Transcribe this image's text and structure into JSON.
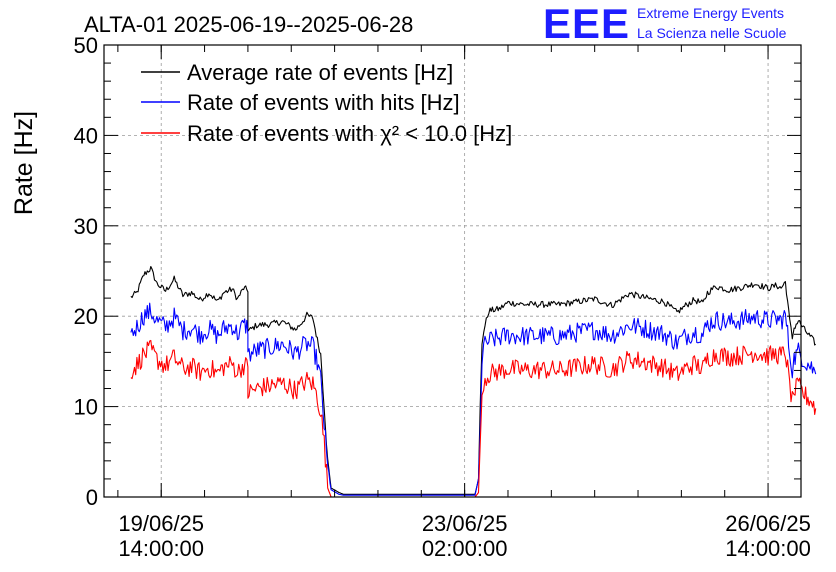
{
  "title": "ALTA-01 2025-06-19--2025-06-28",
  "logo": {
    "mark": "EEE",
    "line1": "Extreme Energy Events",
    "line2": "La Scienza nelle Scuole"
  },
  "chart_data": {
    "type": "line",
    "title": "ALTA-01 2025-06-19--2025-06-28",
    "xlabel": "",
    "ylabel": "Rate [Hz]",
    "ylim": [
      0,
      50
    ],
    "xlim": [
      -0.66,
      7.38
    ],
    "x_unit": "days since 19/06/25 14:00:00",
    "grid": true,
    "legend_placement": "top-left",
    "y_ticks": [
      0,
      10,
      20,
      30,
      40,
      50
    ],
    "x_ticks": [
      {
        "value": 0,
        "line1": "19/06/25",
        "line2": "14:00:00"
      },
      {
        "value": 3.5,
        "line1": "23/06/25",
        "line2": "02:00:00"
      },
      {
        "value": 7,
        "line1": "26/06/25",
        "line2": "14:00:00"
      }
    ],
    "series": [
      {
        "name": "Average rate of events [Hz]",
        "color": "#000000",
        "points": [
          [
            -0.35,
            22.1
          ],
          [
            -0.28,
            22.6
          ],
          [
            -0.2,
            24.6
          ],
          [
            -0.12,
            25.3
          ],
          [
            -0.05,
            23.6
          ],
          [
            0.05,
            22.8
          ],
          [
            0.15,
            24.1
          ],
          [
            0.25,
            22.3
          ],
          [
            0.35,
            22.6
          ],
          [
            0.45,
            21.8
          ],
          [
            0.55,
            22.6
          ],
          [
            0.65,
            21.6
          ],
          [
            0.72,
            22.6
          ],
          [
            0.82,
            23.0
          ],
          [
            0.88,
            21.9
          ],
          [
            0.95,
            23.1
          ],
          [
            1.0,
            22.9
          ],
          [
            1.0,
            18.3
          ],
          [
            1.1,
            19.0
          ],
          [
            1.25,
            19.1
          ],
          [
            1.4,
            19.4
          ],
          [
            1.55,
            18.5
          ],
          [
            1.62,
            19.3
          ],
          [
            1.68,
            20.1
          ],
          [
            1.75,
            19.8
          ],
          [
            1.8,
            17.4
          ],
          [
            1.84,
            15.8
          ],
          [
            1.88,
            10.0
          ],
          [
            1.92,
            4.0
          ],
          [
            1.96,
            1.0
          ],
          [
            2.05,
            0.5
          ],
          [
            2.1,
            0.3
          ],
          [
            3.5,
            0.3
          ],
          [
            3.62,
            0.3
          ],
          [
            3.66,
            2.0
          ],
          [
            3.68,
            10.0
          ],
          [
            3.7,
            17.0
          ],
          [
            3.72,
            18.4
          ],
          [
            3.78,
            20.6
          ],
          [
            3.9,
            20.8
          ],
          [
            4.0,
            21.5
          ],
          [
            4.2,
            21.3
          ],
          [
            4.4,
            21.3
          ],
          [
            4.6,
            21.3
          ],
          [
            4.8,
            21.6
          ],
          [
            5.0,
            21.9
          ],
          [
            5.2,
            21.2
          ],
          [
            5.4,
            22.5
          ],
          [
            5.6,
            22.0
          ],
          [
            5.8,
            21.6
          ],
          [
            5.95,
            20.4
          ],
          [
            6.05,
            21.2
          ],
          [
            6.15,
            21.8
          ],
          [
            6.25,
            21.4
          ],
          [
            6.3,
            22.6
          ],
          [
            6.4,
            23.3
          ],
          [
            6.55,
            22.9
          ],
          [
            6.7,
            23.2
          ],
          [
            6.85,
            23.6
          ],
          [
            7.0,
            23.1
          ],
          [
            7.1,
            23.4
          ],
          [
            7.15,
            23.1
          ],
          [
            7.2,
            23.8
          ],
          [
            7.25,
            19.5
          ],
          [
            7.28,
            17.6
          ],
          [
            7.3,
            18.7
          ],
          [
            7.35,
            19.5
          ],
          [
            7.42,
            18.5
          ],
          [
            7.5,
            17.6
          ],
          [
            7.55,
            16.9
          ]
        ]
      },
      {
        "name": "Rate of events with hits [Hz]",
        "color": "#0000ff",
        "points": [
          [
            -0.35,
            18.0
          ],
          [
            -0.28,
            18.8
          ],
          [
            -0.2,
            20.1
          ],
          [
            -0.12,
            20.5
          ],
          [
            -0.05,
            19.5
          ],
          [
            0.05,
            18.8
          ],
          [
            0.15,
            19.9
          ],
          [
            0.25,
            18.4
          ],
          [
            0.35,
            18.7
          ],
          [
            0.45,
            18.0
          ],
          [
            0.55,
            18.6
          ],
          [
            0.65,
            17.8
          ],
          [
            0.72,
            18.6
          ],
          [
            0.82,
            19.0
          ],
          [
            0.88,
            18.0
          ],
          [
            0.95,
            19.0
          ],
          [
            1.0,
            18.8
          ],
          [
            1.0,
            15.7
          ],
          [
            1.1,
            16.2
          ],
          [
            1.25,
            16.5
          ],
          [
            1.4,
            16.9
          ],
          [
            1.55,
            15.9
          ],
          [
            1.62,
            16.6
          ],
          [
            1.68,
            16.9
          ],
          [
            1.75,
            16.6
          ],
          [
            1.8,
            14.9
          ],
          [
            1.84,
            13.0
          ],
          [
            1.88,
            8.0
          ],
          [
            1.92,
            3.0
          ],
          [
            1.96,
            0.8
          ],
          [
            2.05,
            0.3
          ],
          [
            2.1,
            0.2
          ],
          [
            3.5,
            0.2
          ],
          [
            3.62,
            0.2
          ],
          [
            3.66,
            2.0
          ],
          [
            3.68,
            8.0
          ],
          [
            3.7,
            15.0
          ],
          [
            3.72,
            16.6
          ],
          [
            3.78,
            17.3
          ],
          [
            3.9,
            17.6
          ],
          [
            4.0,
            17.9
          ],
          [
            4.2,
            17.8
          ],
          [
            4.4,
            17.8
          ],
          [
            4.6,
            17.8
          ],
          [
            4.8,
            18.2
          ],
          [
            5.0,
            18.5
          ],
          [
            5.2,
            17.9
          ],
          [
            5.4,
            19.0
          ],
          [
            5.6,
            18.6
          ],
          [
            5.8,
            18.0
          ],
          [
            5.95,
            17.1
          ],
          [
            6.05,
            17.8
          ],
          [
            6.15,
            18.3
          ],
          [
            6.25,
            17.9
          ],
          [
            6.3,
            19.1
          ],
          [
            6.4,
            19.6
          ],
          [
            6.55,
            19.3
          ],
          [
            6.7,
            19.6
          ],
          [
            6.85,
            19.9
          ],
          [
            7.0,
            19.5
          ],
          [
            7.1,
            19.7
          ],
          [
            7.15,
            19.5
          ],
          [
            7.2,
            20.1
          ],
          [
            7.25,
            16.0
          ],
          [
            7.28,
            14.2
          ],
          [
            7.3,
            15.3
          ],
          [
            7.35,
            16.1
          ],
          [
            7.42,
            15.1
          ],
          [
            7.5,
            14.4
          ],
          [
            7.55,
            13.6
          ]
        ]
      },
      {
        "name": "Rate of events with χ² < 10.0 [Hz]",
        "color": "#ff0000",
        "points": [
          [
            -0.35,
            13.9
          ],
          [
            -0.28,
            14.6
          ],
          [
            -0.2,
            15.8
          ],
          [
            -0.12,
            16.3
          ],
          [
            -0.05,
            15.2
          ],
          [
            0.05,
            14.5
          ],
          [
            0.15,
            15.4
          ],
          [
            0.25,
            14.2
          ],
          [
            0.35,
            14.4
          ],
          [
            0.45,
            13.8
          ],
          [
            0.55,
            14.3
          ],
          [
            0.65,
            13.7
          ],
          [
            0.72,
            14.4
          ],
          [
            0.82,
            14.7
          ],
          [
            0.88,
            13.8
          ],
          [
            0.95,
            14.6
          ],
          [
            1.0,
            14.4
          ],
          [
            1.0,
            11.5
          ],
          [
            1.1,
            12.0
          ],
          [
            1.25,
            12.3
          ],
          [
            1.4,
            12.6
          ],
          [
            1.55,
            11.8
          ],
          [
            1.62,
            12.4
          ],
          [
            1.68,
            12.9
          ],
          [
            1.75,
            12.5
          ],
          [
            1.8,
            11.0
          ],
          [
            1.84,
            9.5
          ],
          [
            1.88,
            6.0
          ],
          [
            1.92,
            1.0
          ],
          [
            1.96,
            0.0
          ],
          [
            2.05,
            0.0
          ],
          [
            2.1,
            0.0
          ],
          [
            3.5,
            0.0
          ],
          [
            3.62,
            0.0
          ],
          [
            3.66,
            0.5
          ],
          [
            3.68,
            6.0
          ],
          [
            3.7,
            11.5
          ],
          [
            3.72,
            12.9
          ],
          [
            3.78,
            13.6
          ],
          [
            3.9,
            13.9
          ],
          [
            4.0,
            14.2
          ],
          [
            4.2,
            14.0
          ],
          [
            4.4,
            14.1
          ],
          [
            4.6,
            14.0
          ],
          [
            4.8,
            14.4
          ],
          [
            5.0,
            14.7
          ],
          [
            5.2,
            14.1
          ],
          [
            5.4,
            15.3
          ],
          [
            5.6,
            14.9
          ],
          [
            5.8,
            14.3
          ],
          [
            5.95,
            13.5
          ],
          [
            6.05,
            14.2
          ],
          [
            6.15,
            14.7
          ],
          [
            6.25,
            14.2
          ],
          [
            6.3,
            15.3
          ],
          [
            6.4,
            15.8
          ],
          [
            6.55,
            15.5
          ],
          [
            6.7,
            15.7
          ],
          [
            6.85,
            16.0
          ],
          [
            7.0,
            15.6
          ],
          [
            7.1,
            15.8
          ],
          [
            7.15,
            15.6
          ],
          [
            7.2,
            16.1
          ],
          [
            7.25,
            12.3
          ],
          [
            7.28,
            10.6
          ],
          [
            7.3,
            11.6
          ],
          [
            7.35,
            12.3
          ],
          [
            7.42,
            11.3
          ],
          [
            7.5,
            10.6
          ],
          [
            7.55,
            9.8
          ]
        ]
      }
    ]
  }
}
